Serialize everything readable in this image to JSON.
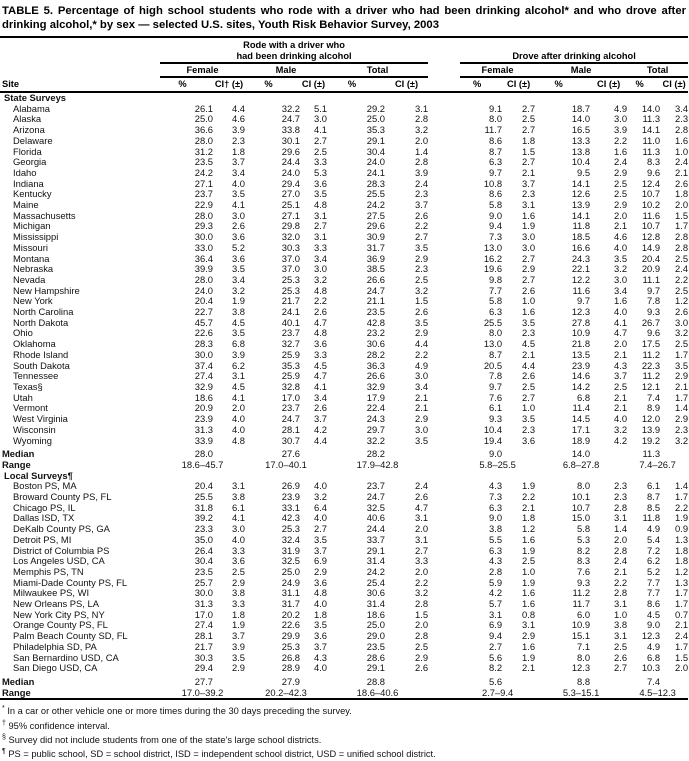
{
  "title": "TABLE 5. Percentage of high school students who rode with a driver who had been drinking alcohol* and who drove after drinking alcohol,* by sex — selected U.S. sites, Youth Risk Behavior Survey, 2003",
  "table": {
    "header": {
      "site_label": "Site",
      "rode_group_line1": "Rode with a driver who",
      "rode_group_line2": "had been drinking alcohol",
      "drove_group": "Drove after drinking alcohol",
      "sub_headers": [
        "Female",
        "Male",
        "Total"
      ],
      "pct_label": "%",
      "ci_label_first": "CI† (±)",
      "ci_label": "CI (±)"
    },
    "median_label": "Median",
    "range_label": "Range",
    "sections": [
      {
        "label": "State Surveys",
        "rows": [
          {
            "site": "Alabama",
            "values": [
              "26.1",
              "4.4",
              "32.2",
              "5.1",
              "29.2",
              "3.1",
              "9.1",
              "2.7",
              "18.7",
              "4.9",
              "14.0",
              "3.4"
            ]
          },
          {
            "site": "Alaska",
            "values": [
              "25.0",
              "4.6",
              "24.7",
              "3.0",
              "25.0",
              "2.8",
              "8.0",
              "2.5",
              "14.0",
              "3.0",
              "11.3",
              "2.3"
            ]
          },
          {
            "site": "Arizona",
            "values": [
              "36.6",
              "3.9",
              "33.8",
              "4.1",
              "35.3",
              "3.2",
              "11.7",
              "2.7",
              "16.5",
              "3.9",
              "14.1",
              "2.8"
            ]
          },
          {
            "site": "Delaware",
            "values": [
              "28.0",
              "2.3",
              "30.1",
              "2.7",
              "29.1",
              "2.0",
              "8.6",
              "1.8",
              "13.3",
              "2.2",
              "11.0",
              "1.6"
            ]
          },
          {
            "site": "Florida",
            "values": [
              "31.2",
              "1.8",
              "29.6",
              "2.5",
              "30.4",
              "1.4",
              "8.7",
              "1.5",
              "13.8",
              "1.6",
              "11.3",
              "1.0"
            ]
          },
          {
            "site": "Georgia",
            "values": [
              "23.5",
              "3.7",
              "24.4",
              "3.3",
              "24.0",
              "2.8",
              "6.3",
              "2.7",
              "10.4",
              "2.4",
              "8.3",
              "2.4"
            ]
          },
          {
            "site": "Idaho",
            "values": [
              "24.2",
              "3.4",
              "24.0",
              "5.3",
              "24.1",
              "3.9",
              "9.7",
              "2.1",
              "9.5",
              "2.9",
              "9.6",
              "2.1"
            ]
          },
          {
            "site": "Indiana",
            "values": [
              "27.1",
              "4.0",
              "29.4",
              "3.6",
              "28.3",
              "2.4",
              "10.8",
              "3.7",
              "14.1",
              "2.5",
              "12.4",
              "2.6"
            ]
          },
          {
            "site": "Kentucky",
            "values": [
              "23.7",
              "3.5",
              "27.0",
              "3.5",
              "25.5",
              "2.3",
              "8.6",
              "2.3",
              "12.6",
              "2.5",
              "10.7",
              "1.8"
            ]
          },
          {
            "site": "Maine",
            "values": [
              "22.9",
              "4.1",
              "25.1",
              "4.8",
              "24.2",
              "3.7",
              "5.8",
              "3.1",
              "13.9",
              "2.9",
              "10.2",
              "2.0"
            ]
          },
          {
            "site": "Massachusetts",
            "values": [
              "28.0",
              "3.0",
              "27.1",
              "3.1",
              "27.5",
              "2.6",
              "9.0",
              "1.6",
              "14.1",
              "2.0",
              "11.6",
              "1.5"
            ]
          },
          {
            "site": "Michigan",
            "values": [
              "29.3",
              "2.6",
              "29.8",
              "2.7",
              "29.6",
              "2.2",
              "9.4",
              "1.9",
              "11.8",
              "2.1",
              "10.7",
              "1.7"
            ]
          },
          {
            "site": "Mississippi",
            "values": [
              "30.0",
              "3.6",
              "32.0",
              "3.1",
              "30.9",
              "2.7",
              "7.3",
              "3.0",
              "18.5",
              "4.6",
              "12.8",
              "2.8"
            ]
          },
          {
            "site": "Missouri",
            "values": [
              "33.0",
              "5.2",
              "30.3",
              "3.3",
              "31.7",
              "3.5",
              "13.0",
              "3.0",
              "16.6",
              "4.0",
              "14.9",
              "2.8"
            ]
          },
          {
            "site": "Montana",
            "values": [
              "36.4",
              "3.6",
              "37.0",
              "3.4",
              "36.9",
              "2.9",
              "16.2",
              "2.7",
              "24.3",
              "3.5",
              "20.4",
              "2.5"
            ]
          },
          {
            "site": "Nebraska",
            "values": [
              "39.9",
              "3.5",
              "37.0",
              "3.0",
              "38.5",
              "2.3",
              "19.6",
              "2.9",
              "22.1",
              "3.2",
              "20.9",
              "2.4"
            ]
          },
          {
            "site": "Nevada",
            "values": [
              "28.0",
              "3.4",
              "25.3",
              "3.2",
              "26.6",
              "2.5",
              "9.8",
              "2.7",
              "12.2",
              "3.0",
              "11.1",
              "2.2"
            ]
          },
          {
            "site": "New Hampshire",
            "values": [
              "24.0",
              "3.2",
              "25.3",
              "4.8",
              "24.7",
              "3.2",
              "7.7",
              "2.6",
              "11.6",
              "3.4",
              "9.7",
              "2.5"
            ]
          },
          {
            "site": "New York",
            "values": [
              "20.4",
              "1.9",
              "21.7",
              "2.2",
              "21.1",
              "1.5",
              "5.8",
              "1.0",
              "9.7",
              "1.6",
              "7.8",
              "1.2"
            ]
          },
          {
            "site": "North Carolina",
            "values": [
              "22.7",
              "3.8",
              "24.1",
              "2.6",
              "23.5",
              "2.6",
              "6.3",
              "1.6",
              "12.3",
              "4.0",
              "9.3",
              "2.6"
            ]
          },
          {
            "site": "North Dakota",
            "values": [
              "45.7",
              "4.5",
              "40.1",
              "4.7",
              "42.8",
              "3.5",
              "25.5",
              "3.5",
              "27.8",
              "4.1",
              "26.7",
              "3.0"
            ]
          },
          {
            "site": "Ohio",
            "values": [
              "22.6",
              "3.5",
              "23.7",
              "4.8",
              "23.2",
              "2.9",
              "8.0",
              "2.3",
              "10.9",
              "4.7",
              "9.6",
              "3.2"
            ]
          },
          {
            "site": "Oklahoma",
            "values": [
              "28.3",
              "6.8",
              "32.7",
              "3.6",
              "30.6",
              "4.4",
              "13.0",
              "4.5",
              "21.8",
              "2.0",
              "17.5",
              "2.5"
            ]
          },
          {
            "site": "Rhode Island",
            "values": [
              "30.0",
              "3.9",
              "25.9",
              "3.3",
              "28.2",
              "2.2",
              "8.7",
              "2.1",
              "13.5",
              "2.1",
              "11.2",
              "1.7"
            ]
          },
          {
            "site": "South Dakota",
            "values": [
              "37.4",
              "6.2",
              "35.3",
              "4.5",
              "36.3",
              "4.9",
              "20.5",
              "4.4",
              "23.9",
              "4.3",
              "22.3",
              "3.5"
            ]
          },
          {
            "site": "Tennessee",
            "values": [
              "27.4",
              "3.1",
              "25.9",
              "4.7",
              "26.6",
              "3.0",
              "7.8",
              "2.6",
              "14.6",
              "3.7",
              "11.2",
              "2.9"
            ]
          },
          {
            "site": "Texas§",
            "values": [
              "32.9",
              "4.5",
              "32.8",
              "4.1",
              "32.9",
              "3.4",
              "9.7",
              "2.5",
              "14.2",
              "2.5",
              "12.1",
              "2.1"
            ]
          },
          {
            "site": "Utah",
            "values": [
              "18.6",
              "4.1",
              "17.0",
              "3.4",
              "17.9",
              "2.1",
              "7.6",
              "2.7",
              "6.8",
              "2.1",
              "7.4",
              "1.7"
            ]
          },
          {
            "site": "Vermont",
            "values": [
              "20.9",
              "2.0",
              "23.7",
              "2.6",
              "22.4",
              "2.1",
              "6.1",
              "1.0",
              "11.4",
              "2.1",
              "8.9",
              "1.4"
            ]
          },
          {
            "site": "West Virginia",
            "values": [
              "23.9",
              "4.0",
              "24.7",
              "3.7",
              "24.3",
              "2.9",
              "9.3",
              "3.5",
              "14.5",
              "4.0",
              "12.0",
              "2.9"
            ]
          },
          {
            "site": "Wisconsin",
            "values": [
              "31.3",
              "4.0",
              "28.1",
              "4.2",
              "29.7",
              "3.0",
              "10.4",
              "2.3",
              "17.1",
              "3.2",
              "13.9",
              "2.3"
            ]
          },
          {
            "site": "Wyoming",
            "values": [
              "33.9",
              "4.8",
              "30.7",
              "4.4",
              "32.2",
              "3.5",
              "19.4",
              "3.6",
              "18.9",
              "4.2",
              "19.2",
              "3.2"
            ]
          }
        ],
        "median": [
          "28.0",
          "27.6",
          "28.2",
          "9.0",
          "14.0",
          "11.3"
        ],
        "range": [
          "18.6–45.7",
          "17.0–40.1",
          "17.9–42.8",
          "5.8–25.5",
          "6.8–27.8",
          "7.4–26.7"
        ]
      },
      {
        "label": "Local Surveys¶",
        "rows": [
          {
            "site": "Boston PS, MA",
            "values": [
              "20.4",
              "3.1",
              "26.9",
              "4.0",
              "23.7",
              "2.4",
              "4.3",
              "1.9",
              "8.0",
              "2.3",
              "6.1",
              "1.4"
            ]
          },
          {
            "site": "Broward County PS, FL",
            "values": [
              "25.5",
              "3.8",
              "23.9",
              "3.2",
              "24.7",
              "2.6",
              "7.3",
              "2.2",
              "10.1",
              "2.3",
              "8.7",
              "1.7"
            ]
          },
          {
            "site": "Chicago PS, IL",
            "values": [
              "31.8",
              "6.1",
              "33.1",
              "6.4",
              "32.5",
              "4.7",
              "6.3",
              "2.1",
              "10.7",
              "2.8",
              "8.5",
              "2.2"
            ]
          },
          {
            "site": "Dallas ISD, TX",
            "values": [
              "39.2",
              "4.1",
              "42.3",
              "4.0",
              "40.6",
              "3.1",
              "9.0",
              "1.8",
              "15.0",
              "3.1",
              "11.8",
              "1.9"
            ]
          },
          {
            "site": "DeKalb County PS, GA",
            "values": [
              "23.3",
              "3.0",
              "25.3",
              "2.7",
              "24.4",
              "2.0",
              "3.8",
              "1.2",
              "5.8",
              "1.4",
              "4.9",
              "0.9"
            ]
          },
          {
            "site": "Detroit PS, MI",
            "values": [
              "35.0",
              "4.0",
              "32.4",
              "3.5",
              "33.7",
              "3.1",
              "5.5",
              "1.6",
              "5.3",
              "2.0",
              "5.4",
              "1.3"
            ]
          },
          {
            "site": "District of Columbia PS",
            "values": [
              "26.4",
              "3.3",
              "31.9",
              "3.7",
              "29.1",
              "2.7",
              "6.3",
              "1.9",
              "8.2",
              "2.8",
              "7.2",
              "1.8"
            ]
          },
          {
            "site": "Los Angeles USD, CA",
            "values": [
              "30.4",
              "3.6",
              "32.5",
              "6.9",
              "31.4",
              "3.3",
              "4.3",
              "2.5",
              "8.3",
              "2.4",
              "6.2",
              "1.8"
            ]
          },
          {
            "site": "Memphis PS, TN",
            "values": [
              "23.5",
              "2.5",
              "25.0",
              "2.9",
              "24.2",
              "2.0",
              "2.8",
              "1.0",
              "7.6",
              "2.1",
              "5.2",
              "1.2"
            ]
          },
          {
            "site": "Miami-Dade County PS, FL",
            "values": [
              "25.7",
              "2.9",
              "24.9",
              "3.6",
              "25.4",
              "2.2",
              "5.9",
              "1.9",
              "9.3",
              "2.2",
              "7.7",
              "1.3"
            ]
          },
          {
            "site": "Milwaukee PS, WI",
            "values": [
              "30.0",
              "3.8",
              "31.1",
              "4.8",
              "30.6",
              "3.2",
              "4.2",
              "1.6",
              "11.2",
              "2.8",
              "7.7",
              "1.7"
            ]
          },
          {
            "site": "New Orleans PS, LA",
            "values": [
              "31.3",
              "3.3",
              "31.7",
              "4.0",
              "31.4",
              "2.8",
              "5.7",
              "1.6",
              "11.7",
              "3.1",
              "8.6",
              "1.7"
            ]
          },
          {
            "site": "New York City PS, NY",
            "values": [
              "17.0",
              "1.8",
              "20.2",
              "1.8",
              "18.6",
              "1.5",
              "3.1",
              "0.8",
              "6.0",
              "1.0",
              "4.5",
              "0.7"
            ]
          },
          {
            "site": "Orange County PS, FL",
            "values": [
              "27.4",
              "1.9",
              "22.6",
              "3.5",
              "25.0",
              "2.0",
              "6.9",
              "3.1",
              "10.9",
              "3.8",
              "9.0",
              "2.1"
            ]
          },
          {
            "site": "Palm Beach County SD, FL",
            "values": [
              "28.1",
              "3.7",
              "29.9",
              "3.6",
              "29.0",
              "2.8",
              "9.4",
              "2.9",
              "15.1",
              "3.1",
              "12.3",
              "2.4"
            ]
          },
          {
            "site": "Philadelphia SD, PA",
            "values": [
              "21.7",
              "3.9",
              "25.3",
              "3.7",
              "23.5",
              "2.5",
              "2.7",
              "1.6",
              "7.1",
              "2.5",
              "4.9",
              "1.7"
            ]
          },
          {
            "site": "San Bernardino USD, CA",
            "values": [
              "30.3",
              "3.5",
              "26.8",
              "4.3",
              "28.6",
              "2.9",
              "5.6",
              "1.9",
              "8.0",
              "2.6",
              "6.8",
              "1.5"
            ]
          },
          {
            "site": "San Diego USD, CA",
            "values": [
              "29.4",
              "2.9",
              "28.9",
              "4.0",
              "29.1",
              "2.6",
              "8.2",
              "2.1",
              "12.3",
              "2.7",
              "10.3",
              "2.0"
            ]
          }
        ],
        "median": [
          "27.7",
          "27.9",
          "28.8",
          "5.6",
          "8.8",
          "7.4"
        ],
        "range": [
          "17.0–39.2",
          "20.2–42.3",
          "18.6–40.6",
          "2.7–9.4",
          "5.3–15.1",
          "4.5–12.3"
        ]
      }
    ]
  },
  "footnotes": [
    {
      "marker": "*",
      "text": "In a car or other vehicle one or more times during the 30 days preceding the survey."
    },
    {
      "marker": "†",
      "text": "95% confidence interval."
    },
    {
      "marker": "§",
      "text": "Survey did not include students from one of the state's large school districts."
    },
    {
      "marker": "¶",
      "text": "PS = public school, SD = school district, ISD = independent school district, USD = unified school district."
    }
  ]
}
